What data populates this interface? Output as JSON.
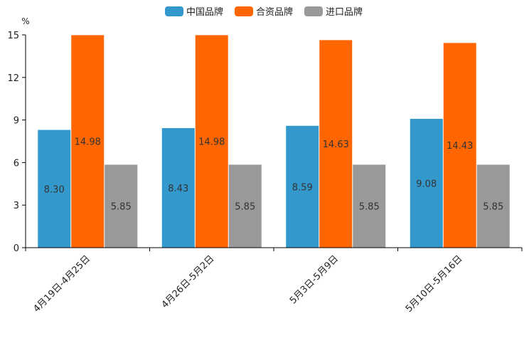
{
  "chart_data": {
    "type": "bar",
    "title": "",
    "xlabel": "",
    "ylabel": "%",
    "ylim": [
      0,
      15
    ],
    "yticks": [
      0,
      3,
      6,
      9,
      12,
      15
    ],
    "grid": false,
    "legend_position": "top-center",
    "categories": [
      "4月19日-4月25日",
      "4月26日-5月2日",
      "5月3日-5月9日",
      "5月10日-5月16日"
    ],
    "series": [
      {
        "name": "中国品牌",
        "color": "#3399CC",
        "values": [
          8.3,
          8.43,
          8.59,
          9.08
        ],
        "labels": [
          "8.30",
          "8.43",
          "8.59",
          "9.08"
        ]
      },
      {
        "name": "合资品牌",
        "color": "#FF6600",
        "values": [
          14.98,
          14.98,
          14.63,
          14.43
        ],
        "labels": [
          "14.98",
          "14.98",
          "14.63",
          "14.43"
        ]
      },
      {
        "name": "进口品牌",
        "color": "#999999",
        "values": [
          5.85,
          5.85,
          5.85,
          5.85
        ],
        "labels": [
          "5.85",
          "5.85",
          "5.85",
          "5.85"
        ]
      }
    ]
  }
}
